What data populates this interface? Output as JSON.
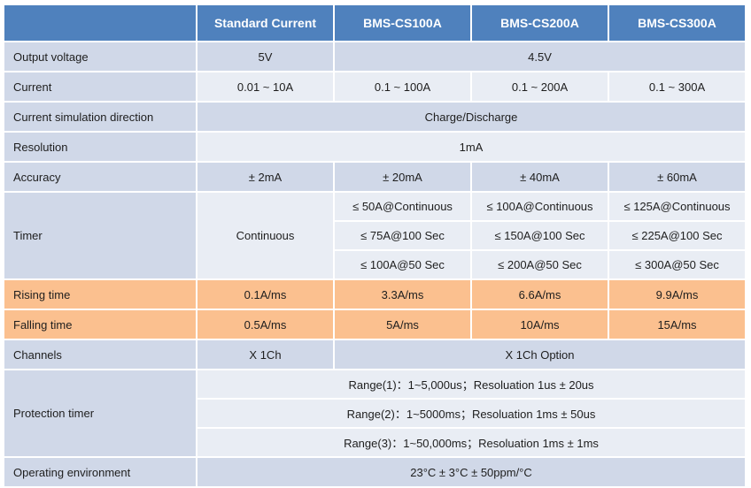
{
  "header": {
    "corner": "",
    "columns": [
      "Standard Current",
      "BMS-CS100A",
      "BMS-CS200A",
      "BMS-CS300A"
    ]
  },
  "rows": {
    "output_voltage": {
      "label": "Output voltage",
      "standard": "5V",
      "bms": "4.5V"
    },
    "current": {
      "label": "Current",
      "values": [
        "0.01 ~ 10A",
        "0.1 ~ 100A",
        "0.1 ~ 200A",
        "0.1 ~ 300A"
      ]
    },
    "direction": {
      "label": "Current simulation direction",
      "value": "Charge/Discharge"
    },
    "resolution": {
      "label": "Resolution",
      "value": "1mA"
    },
    "accuracy": {
      "label": "Accuracy",
      "values": [
        "± 2mA",
        "± 20mA",
        "± 40mA",
        "± 60mA"
      ]
    },
    "timer": {
      "label": "Timer",
      "standard": "Continuous",
      "cs100": [
        "≤ 50A@Continuous",
        "≤ 75A@100 Sec",
        "≤ 100A@50 Sec"
      ],
      "cs200": [
        "≤ 100A@Continuous",
        "≤ 150A@100 Sec",
        "≤ 200A@50 Sec"
      ],
      "cs300": [
        "≤ 125A@Continuous",
        "≤ 225A@100 Sec",
        "≤ 300A@50 Sec"
      ]
    },
    "rising_time": {
      "label": "Rising time",
      "values": [
        "0.1A/ms",
        "3.3A/ms",
        "6.6A/ms",
        "9.9A/ms"
      ]
    },
    "falling_time": {
      "label": "Falling time",
      "values": [
        "0.5A/ms",
        "5A/ms",
        "10A/ms",
        "15A/ms"
      ]
    },
    "channels": {
      "label": "Channels",
      "standard": "X 1Ch",
      "bms": "X 1Ch Option"
    },
    "protection_timer": {
      "label": "Protection timer",
      "ranges": [
        "Range(1)：1~5,000us；Resoluation 1us ± 20us",
        "Range(2)：1~5000ms；Resoluation 1ms ± 50us",
        "Range(3)：1~50,000ms；Resoluation 1ms ± 1ms"
      ]
    },
    "operating_environment": {
      "label": "Operating environment",
      "value": "23°C ± 3°C ± 50ppm/°C"
    }
  },
  "colors": {
    "header": "#4f81bd",
    "row_dark": "#d0d8e8",
    "row_light": "#e9edf4",
    "highlight": "#fbc08f"
  }
}
